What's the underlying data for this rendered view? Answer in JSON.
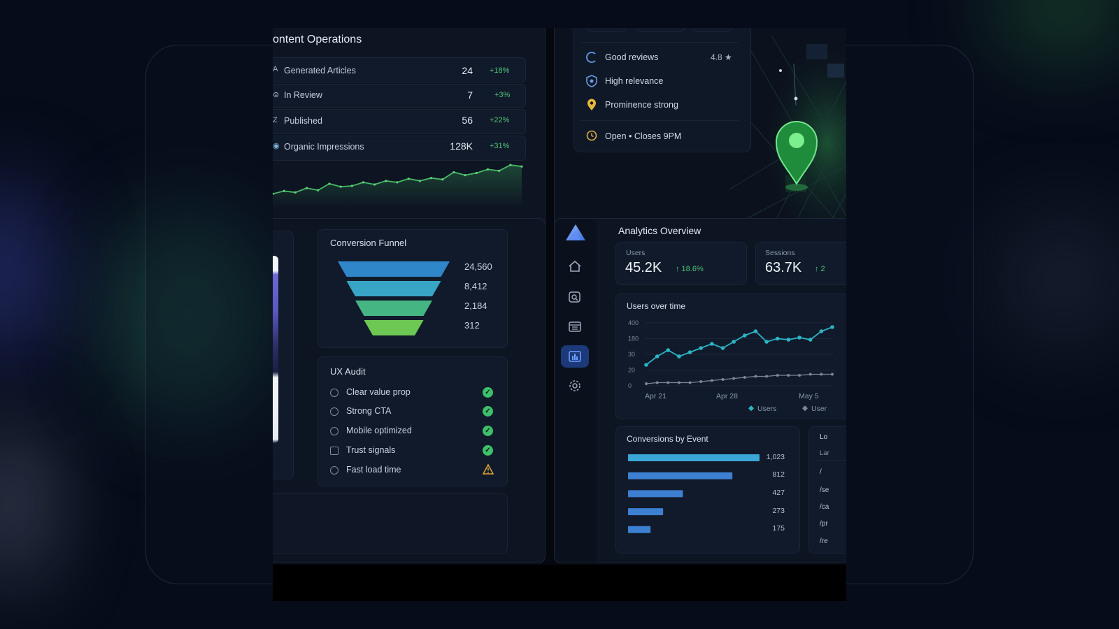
{
  "content_ops": {
    "title": "ontent Operations",
    "rows": [
      {
        "label": "Generated Articles",
        "value": "24",
        "delta": "+18%"
      },
      {
        "label": "In Review",
        "value": "7",
        "delta": "+3%"
      },
      {
        "label": "Published",
        "value": "56",
        "delta": "+22%"
      },
      {
        "label": "Organic Impressions",
        "value": "128K",
        "delta": "+31%"
      }
    ],
    "sparkline": [
      20,
      24,
      22,
      28,
      25,
      34,
      30,
      31,
      36,
      33,
      38,
      36,
      41,
      38,
      42,
      40,
      50,
      46,
      49,
      54,
      52,
      60,
      58
    ]
  },
  "local_seo": {
    "items": [
      {
        "icon": "google-icon",
        "label": "Good reviews",
        "value": "4.8 ★"
      },
      {
        "icon": "shield-icon",
        "label": "High relevance",
        "value": ""
      },
      {
        "icon": "location-pin-icon",
        "label": "Prominence strong",
        "value": ""
      },
      {
        "icon": "clock-icon",
        "label": "Open • Closes 9PM",
        "value": ""
      }
    ]
  },
  "funnel": {
    "title": "Conversion Funnel",
    "stages": [
      "24,560",
      "8,412",
      "2,184",
      "312"
    ],
    "colors": [
      "#2f86c9",
      "#38a5c6",
      "#45b584",
      "#6cc852"
    ]
  },
  "ux_audit": {
    "title": "UX Audit",
    "items": [
      {
        "label": "Clear value prop",
        "status": "pass"
      },
      {
        "label": "Strong CTA",
        "status": "pass"
      },
      {
        "label": "Mobile optimized",
        "status": "pass"
      },
      {
        "label": "Trust signals",
        "status": "pass"
      },
      {
        "label": "Fast load time",
        "status": "warning"
      }
    ]
  },
  "analytics": {
    "title": "Analytics Overview",
    "sidebar": [
      "home-icon",
      "search-icon",
      "calendar-icon",
      "bar-chart-icon",
      "gear-icon"
    ],
    "kpis": [
      {
        "label": "Users",
        "value": "45.2K",
        "delta": "↑ 18.6%"
      },
      {
        "label": "Sessions",
        "value": "63.7K",
        "delta": "↑ 2"
      }
    ],
    "users_over_time": {
      "title": "Users over time",
      "y_ticks": [
        "400",
        "180",
        "30",
        "20",
        "0"
      ],
      "x_ticks": [
        "Apr 21",
        "Apr 28",
        "May 5"
      ],
      "legend": [
        "Users",
        "User"
      ]
    },
    "conversions": {
      "title": "Conversions by Event",
      "values": [
        "1,023",
        "812",
        "427",
        "273",
        "175"
      ]
    },
    "pages": {
      "header": "Lo",
      "col": "Lar",
      "rows": [
        "/",
        "/se",
        "/ca",
        "/pr",
        "/re"
      ]
    }
  },
  "chart_data": [
    {
      "type": "line",
      "title": "Users over time",
      "x": [
        "Apr 21",
        "",
        "",
        "",
        "",
        "",
        "",
        "Apr 28",
        "",
        "",
        "",
        "",
        "",
        "",
        "May 5",
        "",
        "",
        ""
      ],
      "series": [
        {
          "name": "Users",
          "values": [
            20,
            28,
            34,
            28,
            32,
            36,
            40,
            36,
            42,
            48,
            52,
            42,
            45,
            44,
            46,
            44,
            52,
            56
          ]
        },
        {
          "name": "User",
          "values": [
            2,
            3,
            3,
            3,
            3,
            4,
            5,
            6,
            7,
            8,
            9,
            9,
            10,
            10,
            10,
            11,
            11,
            11
          ]
        }
      ],
      "y_ticks": [
        "400",
        "180",
        "30",
        "20",
        "0"
      ]
    },
    {
      "type": "bar",
      "title": "Conversions by Event",
      "values": [
        1023,
        812,
        427,
        273,
        175
      ]
    }
  ]
}
